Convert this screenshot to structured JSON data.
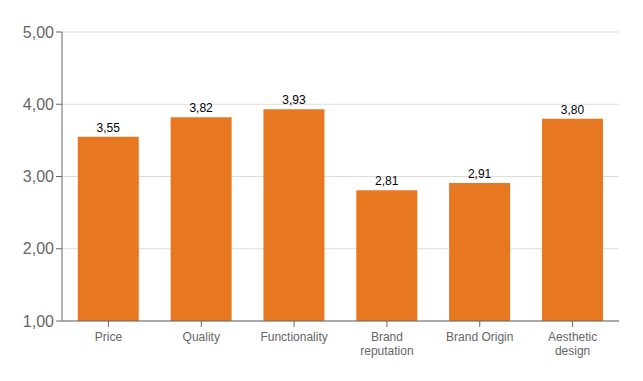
{
  "chart_data": {
    "type": "bar",
    "categories": [
      "Price",
      "Quality",
      "Functionality",
      "Brand\nreputation",
      "Brand Origin",
      "Aesthetic\ndesign"
    ],
    "values": [
      3.55,
      3.82,
      3.93,
      2.81,
      2.91,
      3.8
    ],
    "value_labels": [
      "3,55",
      "3,82",
      "3,93",
      "2,81",
      "2,91",
      "3,80"
    ],
    "data_labels": true,
    "color": "#E87722",
    "ylim": [
      1.0,
      5.0
    ],
    "yticks": [
      {
        "value": 1.0,
        "label": "1,00"
      },
      {
        "value": 2.0,
        "label": "2,00"
      },
      {
        "value": 3.0,
        "label": "3,00"
      },
      {
        "value": 4.0,
        "label": "4,00"
      },
      {
        "value": 5.0,
        "label": "5,00"
      }
    ],
    "grid": true
  }
}
